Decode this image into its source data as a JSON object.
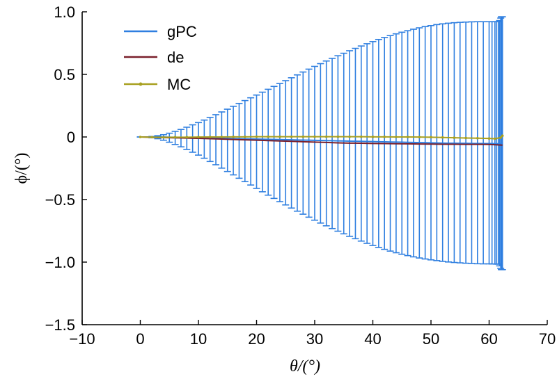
{
  "chart_data": {
    "type": "line",
    "title": "",
    "xlabel": "θ/(°)",
    "ylabel": "ϕ/(°)",
    "xlim": [
      -10,
      70
    ],
    "ylim": [
      -1.5,
      1.0
    ],
    "x_ticks": [
      -10,
      0,
      10,
      20,
      30,
      40,
      50,
      60,
      70
    ],
    "x_tick_labels": [
      "−10",
      "0",
      "10",
      "20",
      "30",
      "40",
      "50",
      "60",
      "70"
    ],
    "y_ticks": [
      1.0,
      0.5,
      0,
      -0.5,
      -1.0,
      -1.5
    ],
    "y_tick_labels": [
      "1.0",
      "0.5",
      "0",
      "−0.5",
      "−1.0",
      "−1.5"
    ],
    "grid": false,
    "legend_position": "top-left",
    "legend": [
      "gPC",
      "de",
      "MC"
    ],
    "colors": {
      "gPC": "#2f7fe0",
      "de": "#7a1f2b",
      "MC": "#a8a020",
      "axis": "#000000"
    },
    "series": [
      {
        "name": "gPC",
        "style": "errorbar",
        "x": [
          0,
          1,
          2,
          3,
          4,
          5,
          6,
          7,
          8,
          9,
          10,
          11,
          12,
          13,
          14,
          15,
          16,
          17,
          18,
          19,
          20,
          21,
          22,
          23,
          24,
          25,
          26,
          27,
          28,
          29,
          30,
          31,
          32,
          33,
          34,
          35,
          36,
          37,
          38,
          39,
          40,
          41,
          42,
          43,
          44,
          45,
          46,
          47,
          48,
          49,
          50,
          51,
          52,
          53,
          54,
          55,
          56,
          57,
          58,
          59,
          60,
          60.5,
          61,
          61.3,
          61.6,
          61.8,
          62,
          62.1,
          62.2,
          62.3
        ],
        "values": [
          0,
          0,
          0,
          0,
          0,
          -0.002,
          -0.003,
          -0.004,
          -0.005,
          -0.006,
          -0.007,
          -0.008,
          -0.009,
          -0.01,
          -0.011,
          -0.012,
          -0.013,
          -0.014,
          -0.015,
          -0.016,
          -0.017,
          -0.018,
          -0.019,
          -0.02,
          -0.021,
          -0.022,
          -0.023,
          -0.024,
          -0.025,
          -0.026,
          -0.027,
          -0.028,
          -0.029,
          -0.03,
          -0.031,
          -0.032,
          -0.033,
          -0.034,
          -0.035,
          -0.036,
          -0.037,
          -0.038,
          -0.039,
          -0.04,
          -0.041,
          -0.042,
          -0.043,
          -0.044,
          -0.045,
          -0.046,
          -0.047,
          -0.048,
          -0.049,
          -0.05,
          -0.05,
          -0.051,
          -0.051,
          -0.052,
          -0.052,
          -0.053,
          -0.053,
          -0.053,
          -0.054,
          -0.054,
          -0.054,
          -0.055,
          -0.055,
          -0.055,
          -0.055,
          -0.055
        ],
        "upper": [
          0,
          0,
          0.004,
          0.01,
          0.018,
          0.03,
          0.045,
          0.06,
          0.078,
          0.097,
          0.115,
          0.135,
          0.156,
          0.178,
          0.2,
          0.222,
          0.245,
          0.268,
          0.291,
          0.313,
          0.335,
          0.358,
          0.381,
          0.404,
          0.427,
          0.45,
          0.473,
          0.496,
          0.519,
          0.542,
          0.564,
          0.586,
          0.607,
          0.628,
          0.649,
          0.669,
          0.689,
          0.708,
          0.727,
          0.745,
          0.762,
          0.779,
          0.795,
          0.81,
          0.824,
          0.837,
          0.849,
          0.861,
          0.872,
          0.882,
          0.89,
          0.898,
          0.904,
          0.909,
          0.913,
          0.916,
          0.918,
          0.92,
          0.921,
          0.921,
          0.921,
          0.921,
          0.921,
          0.921,
          0.921,
          0.93,
          0.95,
          0.96,
          0.96,
          0.96
        ],
        "lower": [
          0,
          -0.001,
          -0.006,
          -0.014,
          -0.026,
          -0.042,
          -0.06,
          -0.079,
          -0.1,
          -0.122,
          -0.145,
          -0.17,
          -0.196,
          -0.222,
          -0.249,
          -0.276,
          -0.303,
          -0.33,
          -0.357,
          -0.384,
          -0.411,
          -0.438,
          -0.465,
          -0.491,
          -0.517,
          -0.543,
          -0.568,
          -0.593,
          -0.617,
          -0.641,
          -0.665,
          -0.688,
          -0.71,
          -0.732,
          -0.753,
          -0.774,
          -0.794,
          -0.813,
          -0.832,
          -0.85,
          -0.867,
          -0.883,
          -0.898,
          -0.912,
          -0.925,
          -0.937,
          -0.948,
          -0.958,
          -0.967,
          -0.975,
          -0.982,
          -0.988,
          -0.994,
          -0.999,
          -1.003,
          -1.006,
          -1.009,
          -1.011,
          -1.013,
          -1.014,
          -1.014,
          -1.015,
          -1.015,
          -1.016,
          -1.016,
          -1.03,
          -1.05,
          -1.06,
          -1.06,
          -1.06
        ]
      },
      {
        "name": "de",
        "style": "line",
        "x": [
          0,
          2,
          4,
          6,
          8,
          10,
          12,
          14,
          16,
          18,
          20,
          22,
          24,
          26,
          28,
          30,
          32,
          34,
          36,
          38,
          40,
          42,
          44,
          46,
          48,
          50,
          52,
          54,
          56,
          58,
          60,
          62.3
        ],
        "values": [
          0,
          -0.003,
          -0.005,
          -0.007,
          -0.009,
          -0.011,
          -0.014,
          -0.017,
          -0.02,
          -0.023,
          -0.026,
          -0.029,
          -0.032,
          -0.035,
          -0.038,
          -0.041,
          -0.044,
          -0.047,
          -0.049,
          -0.05,
          -0.052,
          -0.053,
          -0.054,
          -0.055,
          -0.056,
          -0.057,
          -0.058,
          -0.058,
          -0.059,
          -0.059,
          -0.06,
          -0.065
        ]
      },
      {
        "name": "MC",
        "style": "line-markers",
        "x": [
          0,
          2,
          4,
          6,
          8,
          10,
          12,
          14,
          16,
          18,
          20,
          22,
          24,
          26,
          28,
          30,
          32,
          34,
          36,
          38,
          40,
          42,
          44,
          46,
          48,
          50,
          52,
          54,
          56,
          58,
          60,
          61,
          62,
          62.3
        ],
        "values": [
          0,
          -0.002,
          -0.003,
          -0.002,
          -0.002,
          -0.001,
          0,
          0,
          0.001,
          0.001,
          0.002,
          0.002,
          0.002,
          0.002,
          0.002,
          0.002,
          0.002,
          0.002,
          0.002,
          0.002,
          0.001,
          0.001,
          0,
          0,
          -0.001,
          -0.002,
          -0.004,
          -0.006,
          -0.008,
          -0.01,
          -0.012,
          -0.014,
          -0.005,
          0.01
        ]
      }
    ]
  }
}
